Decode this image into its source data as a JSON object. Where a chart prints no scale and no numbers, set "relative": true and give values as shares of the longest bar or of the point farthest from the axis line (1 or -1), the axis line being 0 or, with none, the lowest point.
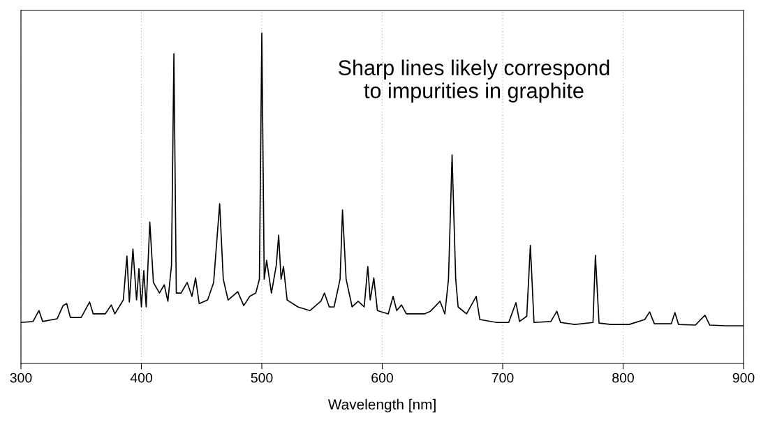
{
  "chart_data": {
    "type": "line",
    "relative": true,
    "xlabel": "Wavelength [nm]",
    "annotations": [
      "Sharp lines likely correspond\nto impurities in graphite"
    ],
    "xlim": [
      300,
      900
    ],
    "xticks": [
      300,
      400,
      500,
      600,
      700,
      800,
      900
    ],
    "grid": "x",
    "tick_labels": "x",
    "x": [
      300,
      310,
      315,
      318,
      330,
      335,
      338,
      341,
      350,
      357,
      360,
      370,
      375,
      378,
      385,
      388,
      390,
      393,
      396,
      398,
      400,
      402,
      404,
      407,
      410,
      415,
      419,
      422,
      425,
      427,
      429,
      433,
      438,
      442,
      445,
      448,
      455,
      460,
      465,
      468,
      472,
      480,
      485,
      490,
      495,
      498,
      500,
      502,
      504,
      508,
      512,
      514,
      516,
      518,
      521,
      530,
      540,
      549,
      552,
      556,
      560,
      565,
      567,
      570,
      575,
      580,
      585,
      588,
      590,
      593,
      596,
      605,
      609,
      612,
      616,
      620,
      635,
      640,
      648,
      652,
      655,
      658,
      661,
      663,
      670,
      678,
      681,
      695,
      705,
      711,
      714,
      720,
      723,
      726,
      740,
      745,
      748,
      760,
      775,
      777,
      780,
      790,
      805,
      818,
      822,
      826,
      840,
      843,
      846,
      860,
      868,
      872,
      885,
      900
    ],
    "series": [
      {
        "color": "#000000",
        "values": [
          0.124,
          0.127,
          0.16,
          0.127,
          0.135,
          0.175,
          0.181,
          0.139,
          0.139,
          0.186,
          0.15,
          0.15,
          0.177,
          0.15,
          0.192,
          0.325,
          0.186,
          0.346,
          0.192,
          0.287,
          0.171,
          0.281,
          0.171,
          0.428,
          0.245,
          0.213,
          0.238,
          0.188,
          0.297,
          0.937,
          0.213,
          0.213,
          0.245,
          0.203,
          0.259,
          0.181,
          0.192,
          0.245,
          0.483,
          0.255,
          0.192,
          0.217,
          0.175,
          0.203,
          0.213,
          0.255,
          1.0,
          0.255,
          0.312,
          0.213,
          0.297,
          0.388,
          0.255,
          0.293,
          0.192,
          0.171,
          0.16,
          0.188,
          0.213,
          0.171,
          0.171,
          0.255,
          0.464,
          0.255,
          0.171,
          0.188,
          0.171,
          0.293,
          0.192,
          0.259,
          0.16,
          0.15,
          0.203,
          0.16,
          0.177,
          0.15,
          0.15,
          0.158,
          0.188,
          0.15,
          0.255,
          0.631,
          0.255,
          0.171,
          0.15,
          0.203,
          0.133,
          0.124,
          0.124,
          0.184,
          0.127,
          0.143,
          0.357,
          0.124,
          0.127,
          0.158,
          0.124,
          0.118,
          0.124,
          0.327,
          0.122,
          0.118,
          0.118,
          0.133,
          0.156,
          0.12,
          0.12,
          0.154,
          0.118,
          0.116,
          0.146,
          0.116,
          0.114,
          0.114
        ]
      }
    ]
  }
}
